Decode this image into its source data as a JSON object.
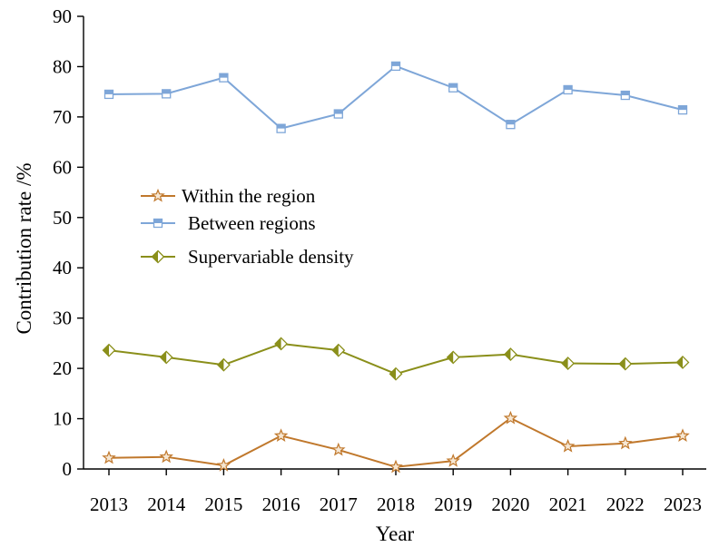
{
  "chart_data": {
    "type": "line",
    "xlabel": "Year",
    "ylabel": "Contribution rate /%",
    "ylim": [
      0,
      90
    ],
    "yticks": [
      0,
      10,
      20,
      30,
      40,
      50,
      60,
      70,
      80,
      90
    ],
    "categories": [
      "2013",
      "2014",
      "2015",
      "2016",
      "2017",
      "2018",
      "2019",
      "2020",
      "2021",
      "2022",
      "2023"
    ],
    "grid": false,
    "legend_position": "center-left",
    "series": [
      {
        "name": "Within the region",
        "color": "#c0782c",
        "marker": "star",
        "values": [
          2.2,
          2.4,
          0.7,
          6.6,
          3.8,
          0.4,
          1.6,
          10.1,
          4.5,
          5.1,
          6.6
        ]
      },
      {
        "name": "Between regions",
        "color": "#7ea6d8",
        "marker": "square",
        "values": [
          74.5,
          74.6,
          77.8,
          67.7,
          70.6,
          80.1,
          75.8,
          68.5,
          75.4,
          74.3,
          71.4
        ]
      },
      {
        "name": "Supervariable density",
        "color": "#8a8f1a",
        "marker": "diamond",
        "values": [
          23.6,
          22.2,
          20.7,
          24.9,
          23.6,
          18.9,
          22.2,
          22.8,
          21.0,
          20.9,
          21.2
        ]
      }
    ]
  }
}
